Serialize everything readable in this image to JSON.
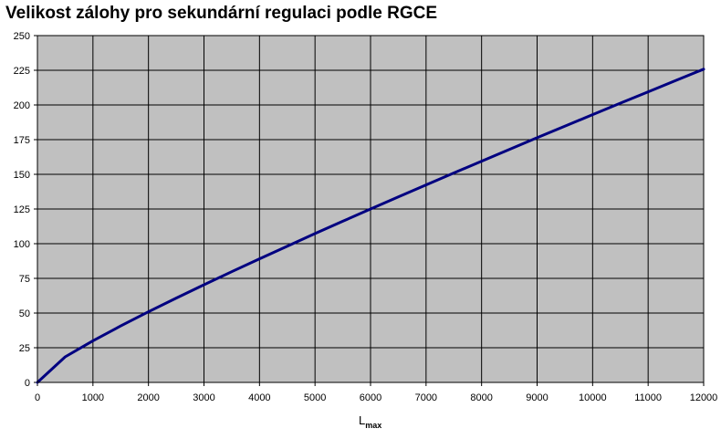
{
  "chart_data": {
    "type": "line",
    "title": "Velikost zálohy pro sekundární regulaci podle RGCE",
    "xlabel": "L",
    "xlabel_subscript": "max",
    "ylabel": "",
    "xlim": [
      0,
      12000
    ],
    "ylim": [
      0,
      250
    ],
    "x_ticks": [
      0,
      1000,
      2000,
      3000,
      4000,
      5000,
      6000,
      7000,
      8000,
      9000,
      10000,
      11000,
      12000
    ],
    "y_ticks": [
      0,
      25,
      50,
      75,
      100,
      125,
      150,
      175,
      200,
      225,
      250
    ],
    "grid": true,
    "legend": "none",
    "plot_background": "#c0c0c0",
    "gridline_color": "#000000",
    "series": [
      {
        "color": "#000080",
        "x": [
          0,
          500,
          1000,
          1500,
          2000,
          2500,
          3000,
          3500,
          4000,
          4500,
          5000,
          5500,
          6000,
          6500,
          7000,
          7500,
          8000,
          8500,
          9000,
          9500,
          10000,
          10500,
          11000,
          11500,
          12000
        ],
        "y": [
          0,
          18.4,
          30.0,
          40.7,
          50.9,
          60.8,
          70.4,
          79.8,
          89.1,
          98.2,
          107.3,
          116.2,
          125.0,
          133.7,
          142.4,
          151.0,
          159.5,
          167.9,
          176.4,
          184.7,
          193.0,
          201.3,
          209.5,
          217.7,
          225.8
        ]
      }
    ]
  }
}
